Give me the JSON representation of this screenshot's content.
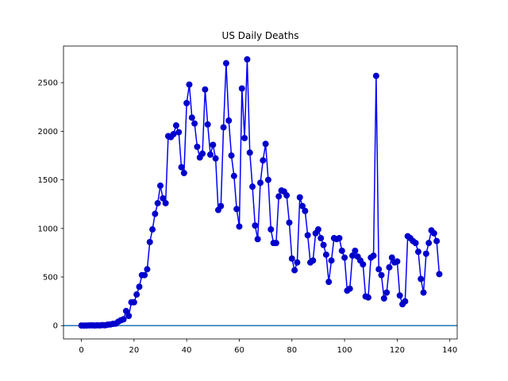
{
  "chart_data": {
    "type": "line",
    "title": "US Daily Deaths",
    "xlabel": "",
    "ylabel": "",
    "xlim": [
      -6.8,
      142.8
    ],
    "ylim": [
      -137,
      2877
    ],
    "xticks": [
      0,
      20,
      40,
      60,
      80,
      100,
      120,
      140
    ],
    "yticks": [
      0,
      500,
      1000,
      1500,
      2000,
      2500
    ],
    "grid": false,
    "legend": "none",
    "line_color": "#0000ff",
    "marker_color": "#0000cc",
    "baseline": {
      "y": 0,
      "color": "#1f77b4"
    },
    "series": [
      {
        "x": [
          0,
          1,
          2,
          3,
          4,
          5,
          6,
          7,
          8,
          9,
          10,
          11,
          12,
          13,
          14,
          15,
          16,
          17,
          18,
          19,
          20,
          21,
          22,
          23,
          24,
          25,
          26,
          27,
          28,
          29,
          30,
          31,
          32,
          33,
          34,
          35,
          36,
          37,
          38,
          39,
          40,
          41,
          42,
          43,
          44,
          45,
          46,
          47,
          48,
          49,
          50,
          51,
          52,
          53,
          54,
          55,
          56,
          57,
          58,
          59,
          60,
          61,
          62,
          63,
          64,
          65,
          66,
          67,
          68,
          69,
          70,
          71,
          72,
          73,
          74,
          75,
          76,
          77,
          78,
          79,
          80,
          81,
          82,
          83,
          84,
          85,
          86,
          87,
          88,
          89,
          90,
          91,
          92,
          93,
          94,
          95,
          96,
          97,
          98,
          99,
          100,
          101,
          102,
          103,
          104,
          105,
          106,
          107,
          108,
          109,
          110,
          111,
          112,
          113,
          114,
          115,
          116,
          117,
          118,
          119,
          120,
          121,
          122,
          123,
          124,
          125,
          126,
          127,
          128,
          129,
          130,
          131,
          132,
          133,
          134,
          135,
          136
        ],
        "y": [
          1,
          0,
          1,
          2,
          3,
          1,
          3,
          2,
          5,
          4,
          10,
          12,
          18,
          20,
          40,
          55,
          65,
          150,
          100,
          240,
          240,
          320,
          400,
          520,
          520,
          580,
          860,
          990,
          1150,
          1260,
          1440,
          1310,
          1260,
          1950,
          1940,
          1970,
          2060,
          1990,
          1630,
          1570,
          2290,
          2480,
          2140,
          2080,
          1840,
          1730,
          1770,
          2430,
          2070,
          1760,
          1860,
          1720,
          1190,
          1230,
          2040,
          2700,
          2110,
          1750,
          1540,
          1200,
          1020,
          2440,
          1930,
          2740,
          1780,
          1430,
          1030,
          890,
          1470,
          1700,
          1870,
          1500,
          990,
          850,
          850,
          1330,
          1390,
          1380,
          1340,
          1060,
          690,
          570,
          650,
          1320,
          1230,
          1180,
          930,
          650,
          670,
          950,
          990,
          900,
          830,
          730,
          450,
          670,
          900,
          890,
          900,
          770,
          700,
          360,
          380,
          720,
          770,
          710,
          670,
          630,
          300,
          290,
          700,
          720,
          2570,
          580,
          520,
          280,
          340,
          600,
          700,
          650,
          660,
          310,
          220,
          250,
          920,
          900,
          870,
          850,
          760,
          480,
          340,
          740,
          850,
          980,
          950,
          870,
          530
        ]
      }
    ]
  }
}
